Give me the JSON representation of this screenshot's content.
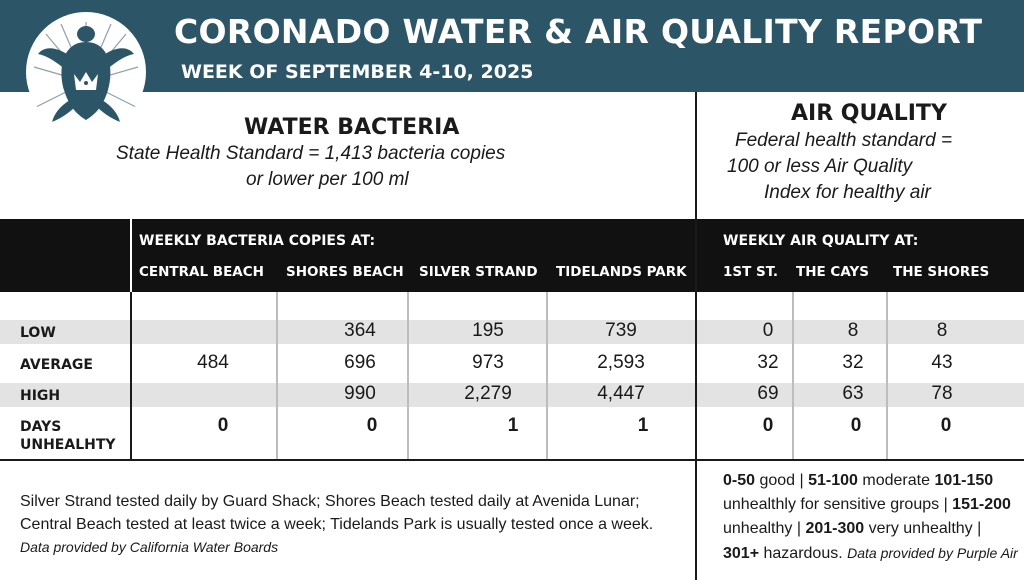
{
  "header": {
    "title": "CORONADO WATER & AIR QUALITY REPORT",
    "subtitle": "WEEK OF SEPTEMBER 4-10, 2025"
  },
  "colors": {
    "header_bg": "#2d5568",
    "bar_bg": "#111111",
    "band": "#e3e3e3"
  },
  "water": {
    "title": "WATER BACTERIA",
    "standard_line1": "State Health Standard  = 1,413 bacteria copies",
    "standard_line2": "or lower per 100 ml",
    "bar_label": "WEEKLY BACTERIA COPIES AT:",
    "columns": [
      "CENTRAL BEACH",
      "SHORES BEACH",
      "SILVER STRAND",
      "TIDELANDS PARK"
    ]
  },
  "air": {
    "title": "AIR QUALITY",
    "standard_line1": "Federal health standard =",
    "standard_line2": "100 or less Air Quality",
    "standard_line3": "Index for healthy air",
    "bar_label": "WEEKLY AIR QUALITY AT:",
    "columns": [
      "1ST ST.",
      "THE CAYS",
      "THE SHORES"
    ]
  },
  "rows": [
    {
      "label": "LOW",
      "water": [
        "",
        "364",
        "195",
        "739"
      ],
      "air": [
        "0",
        "8",
        "8"
      ]
    },
    {
      "label": "AVERAGE",
      "water": [
        "484",
        "696",
        "973",
        "2,593"
      ],
      "air": [
        "32",
        "32",
        "43"
      ]
    },
    {
      "label": "HIGH",
      "water": [
        "",
        "990",
        "2,279",
        "4,447"
      ],
      "air": [
        "69",
        "63",
        "78"
      ]
    },
    {
      "label_line1": "DAYS",
      "label_line2": "UNHEALHTY",
      "water": [
        "0",
        "0",
        "1",
        "1"
      ],
      "air": [
        "0",
        "0",
        "0"
      ]
    }
  ],
  "footnote": {
    "text": "Silver Strand tested daily by Guard Shack; Shores Beach tested daily at Avenida Lunar; Central Beach tested at least twice a week; Tidelands Park is usually tested once a week.",
    "source": "Data provided by California Water Boards"
  },
  "aqi_legend": {
    "r1": "0-50",
    "r1_label": "good | ",
    "r2": "51-100",
    "r2_label": "moderate",
    "r3": "101-150",
    "r3_label": "unhealthly for sensitive groups | ",
    "r4": "151-200",
    "r4_label": "unhealthy | ",
    "r5": "201-300",
    "r5_label": "very unhealthy | ",
    "r6": "301+",
    "r6_label": "hazardous.",
    "source": "Data provided by Purple Air"
  },
  "logo": {
    "icon": "sea-turtle-crown-icon"
  }
}
